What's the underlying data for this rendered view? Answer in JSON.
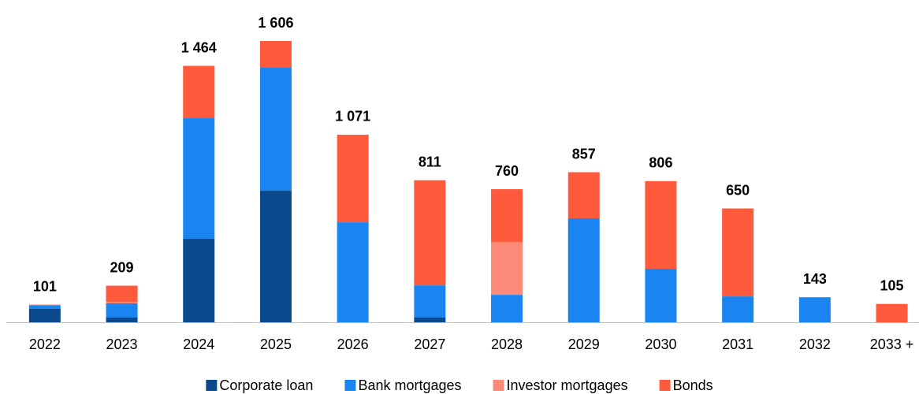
{
  "chart_data": {
    "type": "stacked_bar",
    "categories": [
      "2022",
      "2023",
      "2024",
      "2025",
      "2026",
      "2027",
      "2028",
      "2029",
      "2030",
      "2031",
      "2032",
      "2033 +"
    ],
    "series": [
      {
        "name": "Corporate loan",
        "color": "#0a4a8c",
        "values": [
          78,
          27,
          477,
          751,
          0,
          27,
          0,
          0,
          0,
          0,
          0,
          0
        ]
      },
      {
        "name": "Bank mortgages",
        "color": "#1a85f0",
        "values": [
          20,
          81,
          688,
          702,
          571,
          184,
          157,
          594,
          306,
          148,
          143,
          0
        ]
      },
      {
        "name": "Investor mortgages",
        "color": "#fb8a78",
        "values": [
          3,
          8,
          0,
          0,
          0,
          0,
          301,
          0,
          0,
          0,
          0,
          0
        ]
      },
      {
        "name": "Bonds",
        "color": "#ff5a3c",
        "values": [
          0,
          93,
          299,
          153,
          500,
          600,
          302,
          263,
          500,
          502,
          0,
          105
        ]
      }
    ],
    "totals": [
      101,
      209,
      1464,
      1606,
      1071,
      811,
      760,
      857,
      806,
      650,
      143,
      105
    ],
    "value_labels": [
      "101",
      "209",
      "1 464",
      "1 606",
      "1 071",
      "811",
      "760",
      "857",
      "806",
      "650",
      "143",
      "105"
    ],
    "ylim": [
      0,
      1750
    ]
  }
}
